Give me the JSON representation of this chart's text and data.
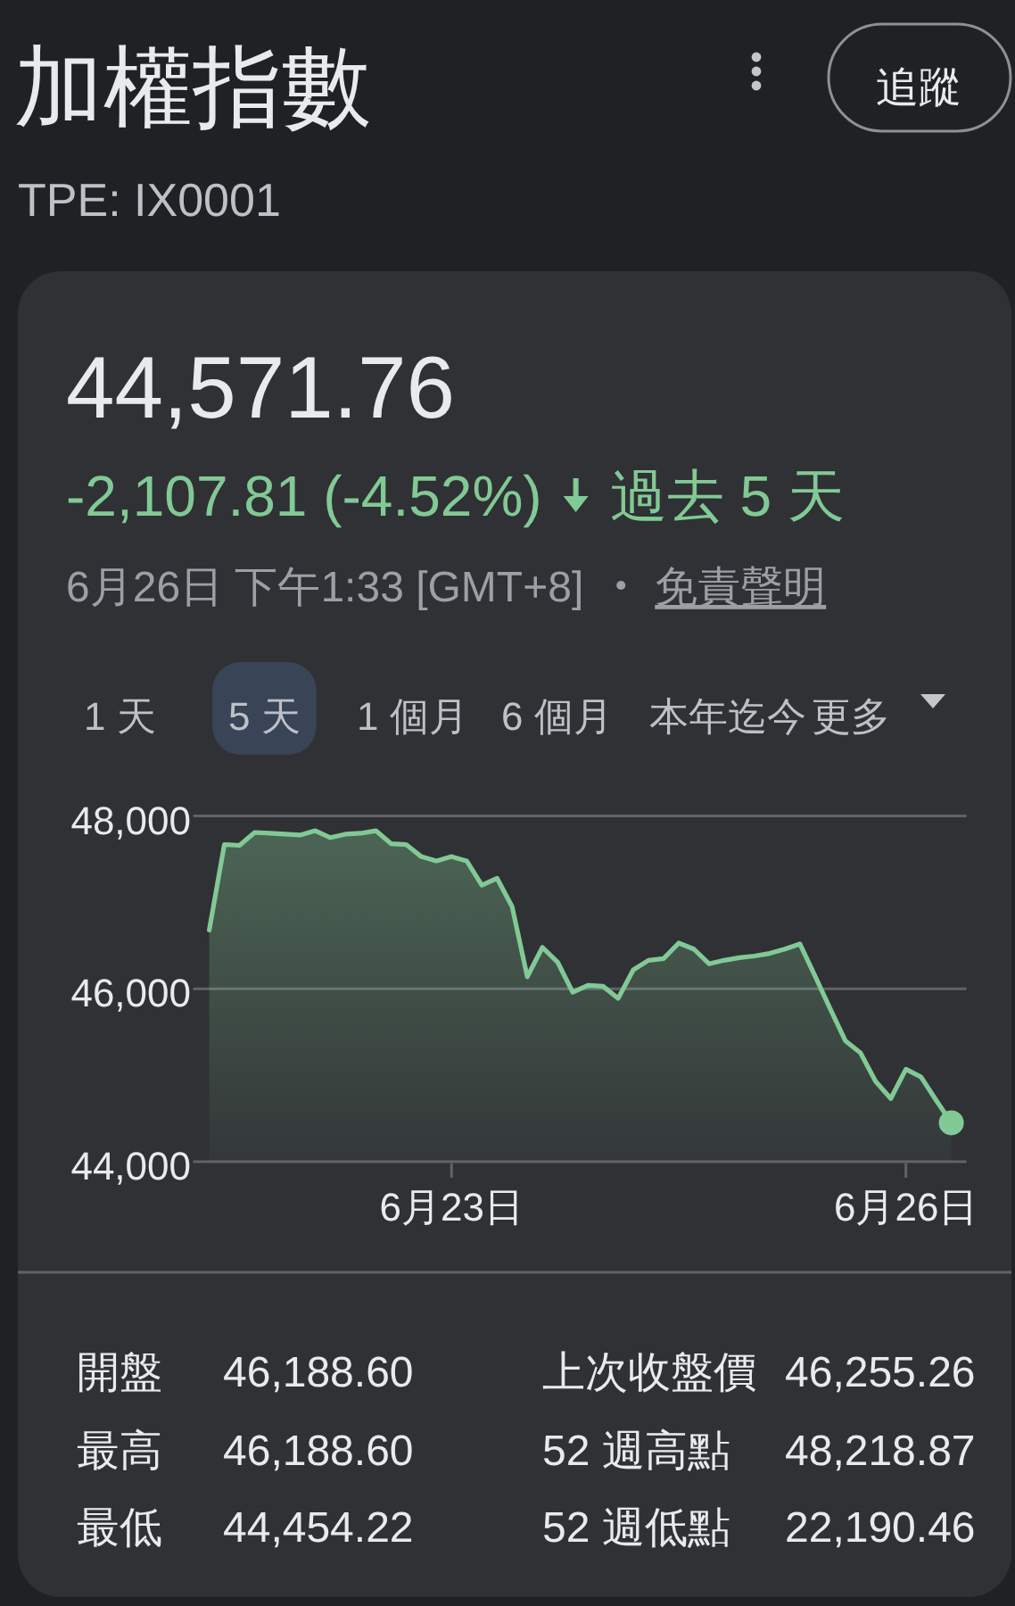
{
  "chart_data": [
    {
      "type": "area",
      "title": "加權指數",
      "subtitle": "TPE: IX0001",
      "annotations": [
        "44,571.76",
        "-2,107.81 (-4.52%)",
        "過去 5 天",
        "6月26日 下午1:33 [GMT+8]",
        "免責聲明",
        "追蹤",
        "1 天",
        "5 天",
        "1 個月",
        "6 個月",
        "本年迄今",
        "更多"
      ],
      "categories": [
        null,
        null,
        null,
        null,
        null,
        null,
        null,
        null,
        null,
        null,
        null,
        null,
        null,
        null,
        null,
        null,
        "6月23日",
        null,
        null,
        null,
        null,
        null,
        null,
        null,
        null,
        null,
        null,
        null,
        null,
        null,
        null,
        null,
        null,
        null,
        null,
        null,
        null,
        null,
        null,
        null,
        null,
        null,
        null,
        null,
        null,
        null,
        "6月26日",
        null,
        null,
        null
      ],
      "series": [
        {
          "color": "#81c995",
          "values": [
            46680,
            47670,
            47660,
            47810,
            47800,
            47790,
            47780,
            47830,
            47750,
            47790,
            47800,
            47830,
            47680,
            47670,
            47530,
            47480,
            47530,
            47480,
            47200,
            47280,
            46950,
            46140,
            46480,
            46310,
            45960,
            46040,
            46030,
            45890,
            46220,
            46330,
            46350,
            46530,
            46460,
            46290,
            46330,
            46360,
            46380,
            46410,
            46460,
            46520,
            46150,
            45770,
            45400,
            45260,
            44930,
            44730,
            45070,
            44980,
            44710,
            44450
          ]
        },
        {
          "type": "scatter",
          "color": "#81c995",
          "marker": "circle",
          "values": [
            null,
            null,
            null,
            null,
            null,
            null,
            null,
            null,
            null,
            null,
            null,
            null,
            null,
            null,
            null,
            null,
            null,
            null,
            null,
            null,
            null,
            null,
            null,
            null,
            null,
            null,
            null,
            null,
            null,
            null,
            null,
            null,
            null,
            null,
            null,
            null,
            null,
            null,
            null,
            null,
            null,
            null,
            null,
            null,
            null,
            null,
            null,
            null,
            null,
            44450
          ]
        }
      ],
      "ylim": [
        44000,
        48000
      ],
      "yticks": [
        {
          "value": 44000,
          "label": "44,000"
        },
        {
          "value": 46000,
          "label": "46,000"
        },
        {
          "value": 48000,
          "label": "48,000"
        }
      ],
      "grid": "y"
    },
    {
      "type": "other",
      "annotations": [
        "開盤",
        "46,188.60",
        "最高",
        "46,188.60",
        "最低",
        "44,454.22",
        "上次收盤價",
        "46,255.26",
        "52 週高點",
        "48,218.87",
        "52 週低點",
        "22,190.46"
      ]
    }
  ]
}
